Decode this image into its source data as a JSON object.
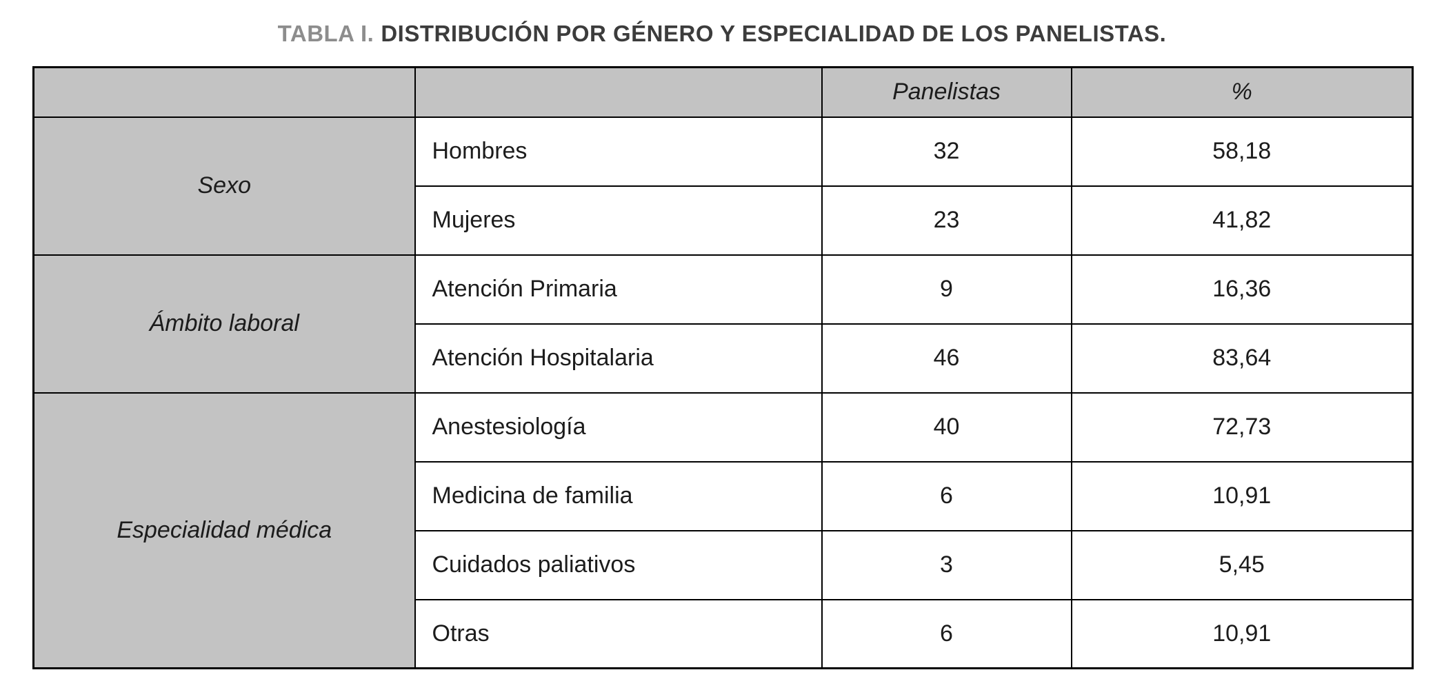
{
  "title": {
    "tag": "TABLA I.",
    "text": "DISTRIBUCIÓN POR GÉNERO Y ESPECIALIDAD DE LOS PANELISTAS."
  },
  "table": {
    "headers": {
      "panelistas": "Panelistas",
      "percent": "%"
    },
    "groups": [
      {
        "label": "Sexo",
        "rows": [
          {
            "category": "Hombres",
            "panelistas": "32",
            "percent": "58,18"
          },
          {
            "category": "Mujeres",
            "panelistas": "23",
            "percent": "41,82"
          }
        ]
      },
      {
        "label": "Ámbito laboral",
        "rows": [
          {
            "category": "Atención Primaria",
            "panelistas": "9",
            "percent": "16,36"
          },
          {
            "category": "Atención Hospitalaria",
            "panelistas": "46",
            "percent": "83,64"
          }
        ]
      },
      {
        "label": "Especialidad médica",
        "rows": [
          {
            "category": "Anestesiología",
            "panelistas": "40",
            "percent": "72,73"
          },
          {
            "category": "Medicina de familia",
            "panelistas": "6",
            "percent": "10,91"
          },
          {
            "category": "Cuidados paliativos",
            "panelistas": "3",
            "percent": "5,45"
          },
          {
            "category": "Otras",
            "panelistas": "6",
            "percent": "10,91"
          }
        ]
      }
    ]
  },
  "colors": {
    "header_bg": "#c3c3c3",
    "border": "#000000",
    "title_tag": "#8d8d8d",
    "title_text": "#3c3c3c",
    "body_text": "#1c1c1c"
  }
}
